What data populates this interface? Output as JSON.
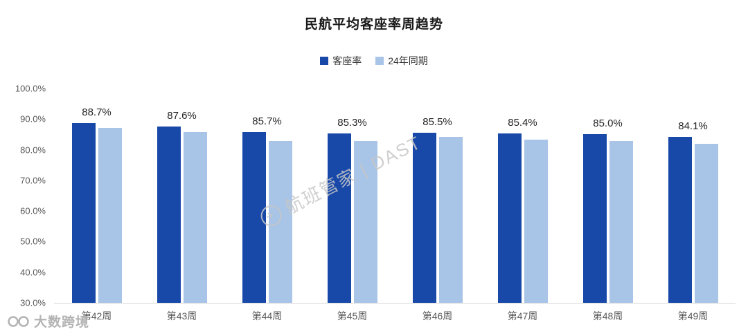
{
  "chart_data": {
    "type": "bar",
    "title": "民航平均客座率周趋势",
    "categories": [
      "第42周",
      "第43周",
      "第44周",
      "第45周",
      "第46周",
      "第47周",
      "第48周",
      "第49周"
    ],
    "series": [
      {
        "name": "客座率",
        "color": "#1849a9",
        "values": [
          88.7,
          87.6,
          85.7,
          85.3,
          85.5,
          85.4,
          85.0,
          84.1
        ],
        "labels": [
          "88.7%",
          "87.6%",
          "85.7%",
          "85.3%",
          "85.5%",
          "85.4%",
          "85.0%",
          "84.1%"
        ]
      },
      {
        "name": "24年同期",
        "color": "#a8c4e6",
        "values": [
          87.2,
          85.8,
          82.8,
          82.9,
          84.2,
          83.3,
          82.8,
          82.0
        ]
      }
    ],
    "ylim": [
      30,
      100
    ],
    "yticks": [
      "100.0%",
      "90.0%",
      "80.0%",
      "70.0%",
      "60.0%",
      "50.0%",
      "40.0%",
      "30.0%"
    ],
    "xlabel": "",
    "ylabel": "",
    "grid": false,
    "legend_position": "top"
  },
  "watermarks": {
    "center": "航班管家 | DAST",
    "corner": "大数跨境"
  }
}
